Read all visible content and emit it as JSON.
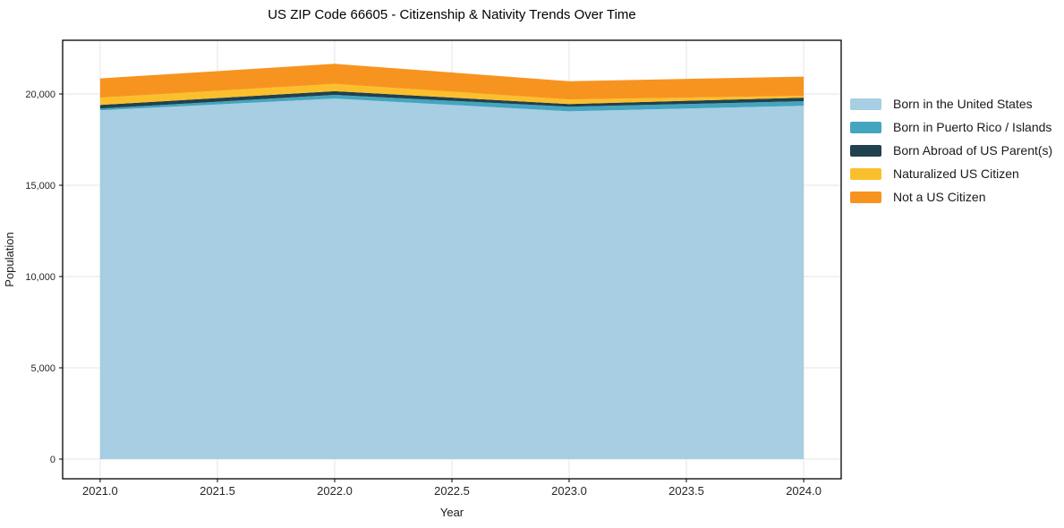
{
  "chart_data": {
    "type": "area",
    "stacked": true,
    "title": "US ZIP Code 66605 - Citizenship & Nativity Trends Over Time",
    "xlabel": "Year",
    "ylabel": "Population",
    "x": [
      2021,
      2022,
      2023,
      2024
    ],
    "series": [
      {
        "name": "Born in the United States",
        "color": "#a7cee2",
        "values": [
          19100,
          19750,
          19050,
          19350
        ]
      },
      {
        "name": "Born in Puerto Rico / Islands",
        "color": "#44a5bf",
        "values": [
          100,
          200,
          250,
          250
        ]
      },
      {
        "name": "Born Abroad of US Parent(s)",
        "color": "#20414f",
        "values": [
          200,
          200,
          150,
          200
        ]
      },
      {
        "name": "Naturalized US Citizen",
        "color": "#fcbf2c",
        "values": [
          400,
          400,
          250,
          100
        ]
      },
      {
        "name": "Not a US Citizen",
        "color": "#f79420",
        "values": [
          1050,
          1100,
          1000,
          1050
        ]
      }
    ],
    "totals": [
      20850,
      21650,
      20700,
      20950
    ],
    "xticks": {
      "values": [
        2021.0,
        2021.5,
        2022.0,
        2022.5,
        2023.0,
        2023.5,
        2024.0
      ],
      "labels": [
        "2021.0",
        "2021.5",
        "2022.0",
        "2022.5",
        "2023.0",
        "2023.5",
        "2024.0"
      ]
    },
    "yticks": {
      "values": [
        0,
        5000,
        10000,
        15000,
        20000
      ],
      "labels": [
        "0",
        "5,000",
        "10,000",
        "15,000",
        "20,000"
      ]
    },
    "xlim": [
      2020.84,
      2024.16
    ],
    "ylim": [
      -1080,
      22940
    ],
    "grid": true,
    "legend_position": "center-right-outside",
    "background": "#ffffff",
    "grid_color": "#e6e6e6",
    "spine_color": "#000000",
    "text_color": "#262626"
  }
}
